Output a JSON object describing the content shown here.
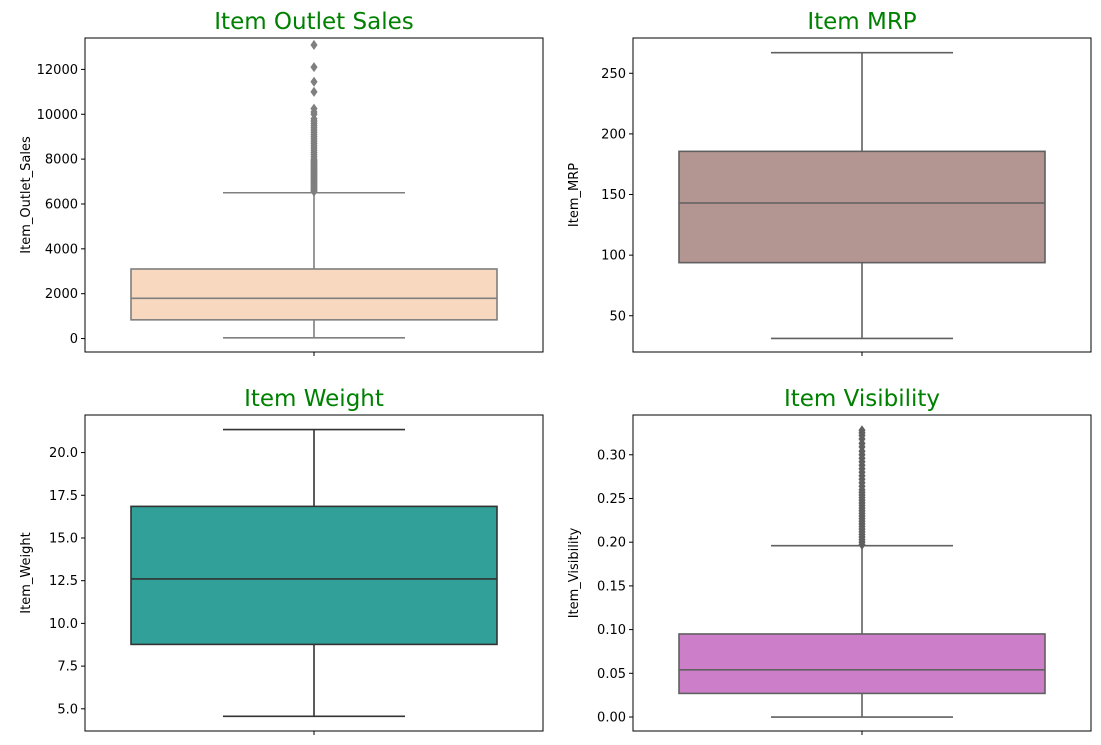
{
  "chart_data": [
    {
      "type": "box",
      "title": "Item Outlet Sales",
      "xlabel": "",
      "ylabel": "Item_Outlet_Sales",
      "ylim": [
        -600,
        13400
      ],
      "yticks": [
        0,
        2000,
        4000,
        6000,
        8000,
        10000,
        12000
      ],
      "ytick_labels": [
        "0",
        "2000",
        "4000",
        "6000",
        "8000",
        "10000",
        "12000"
      ],
      "box_color": "#f8d8bf",
      "line_color": "#7f7f7f",
      "whisker_low": 33,
      "q1": 834,
      "median": 1794,
      "q3": 3101,
      "whisker_high": 6500,
      "outliers": [
        6550,
        6600,
        6650,
        6700,
        6750,
        6800,
        6850,
        6900,
        6950,
        7000,
        7050,
        7100,
        7150,
        7200,
        7250,
        7300,
        7350,
        7400,
        7450,
        7500,
        7550,
        7600,
        7650,
        7700,
        7750,
        7800,
        7850,
        7900,
        7950,
        8000,
        8100,
        8200,
        8300,
        8400,
        8500,
        8600,
        8700,
        8800,
        8900,
        9000,
        9100,
        9200,
        9300,
        9400,
        9500,
        9600,
        9700,
        9800,
        10000,
        10100,
        10250,
        11000,
        11450,
        12100,
        13090
      ]
    },
    {
      "type": "box",
      "title": "Item MRP",
      "xlabel": "",
      "ylabel": "Item_MRP",
      "ylim": [
        20.1,
        279.1
      ],
      "yticks": [
        50,
        100,
        150,
        200,
        250
      ],
      "ytick_labels": [
        "50",
        "100",
        "150",
        "200",
        "250"
      ],
      "box_color": "#b39591",
      "line_color": "#606060",
      "whisker_low": 31.3,
      "q1": 93.8,
      "median": 143,
      "q3": 185.6,
      "whisker_high": 267,
      "outliers": []
    },
    {
      "type": "box",
      "title": "Item Weight",
      "xlabel": "",
      "ylabel": "Item_Weight",
      "ylim": [
        3.7,
        22.2
      ],
      "yticks": [
        5.0,
        7.5,
        10.0,
        12.5,
        15.0,
        17.5,
        20.0
      ],
      "ytick_labels": [
        "5.0",
        "7.5",
        "10.0",
        "12.5",
        "15.0",
        "17.5",
        "20.0"
      ],
      "box_color": "#31a098",
      "line_color": "#333333",
      "whisker_low": 4.56,
      "q1": 8.77,
      "median": 12.6,
      "q3": 16.85,
      "whisker_high": 21.35,
      "outliers": []
    },
    {
      "type": "box",
      "title": "Item Visibility",
      "xlabel": "",
      "ylabel": "Item_Visibility",
      "ylim": [
        -0.016,
        0.3455
      ],
      "yticks": [
        0.0,
        0.05,
        0.1,
        0.15,
        0.2,
        0.25,
        0.3
      ],
      "ytick_labels": [
        "0.00",
        "0.05",
        "0.10",
        "0.15",
        "0.20",
        "0.25",
        "0.30"
      ],
      "box_color": "#cd7ec9",
      "line_color": "#606060",
      "whisker_low": 0.0,
      "q1": 0.027,
      "median": 0.054,
      "q3": 0.095,
      "whisker_high": 0.196,
      "outliers": [
        0.197,
        0.2,
        0.203,
        0.206,
        0.209,
        0.212,
        0.215,
        0.218,
        0.221,
        0.224,
        0.227,
        0.23,
        0.233,
        0.236,
        0.239,
        0.242,
        0.245,
        0.248,
        0.251,
        0.254,
        0.257,
        0.26,
        0.264,
        0.268,
        0.272,
        0.276,
        0.28,
        0.284,
        0.288,
        0.292,
        0.296,
        0.3,
        0.304,
        0.309,
        0.313,
        0.318,
        0.322,
        0.325,
        0.328
      ]
    }
  ]
}
